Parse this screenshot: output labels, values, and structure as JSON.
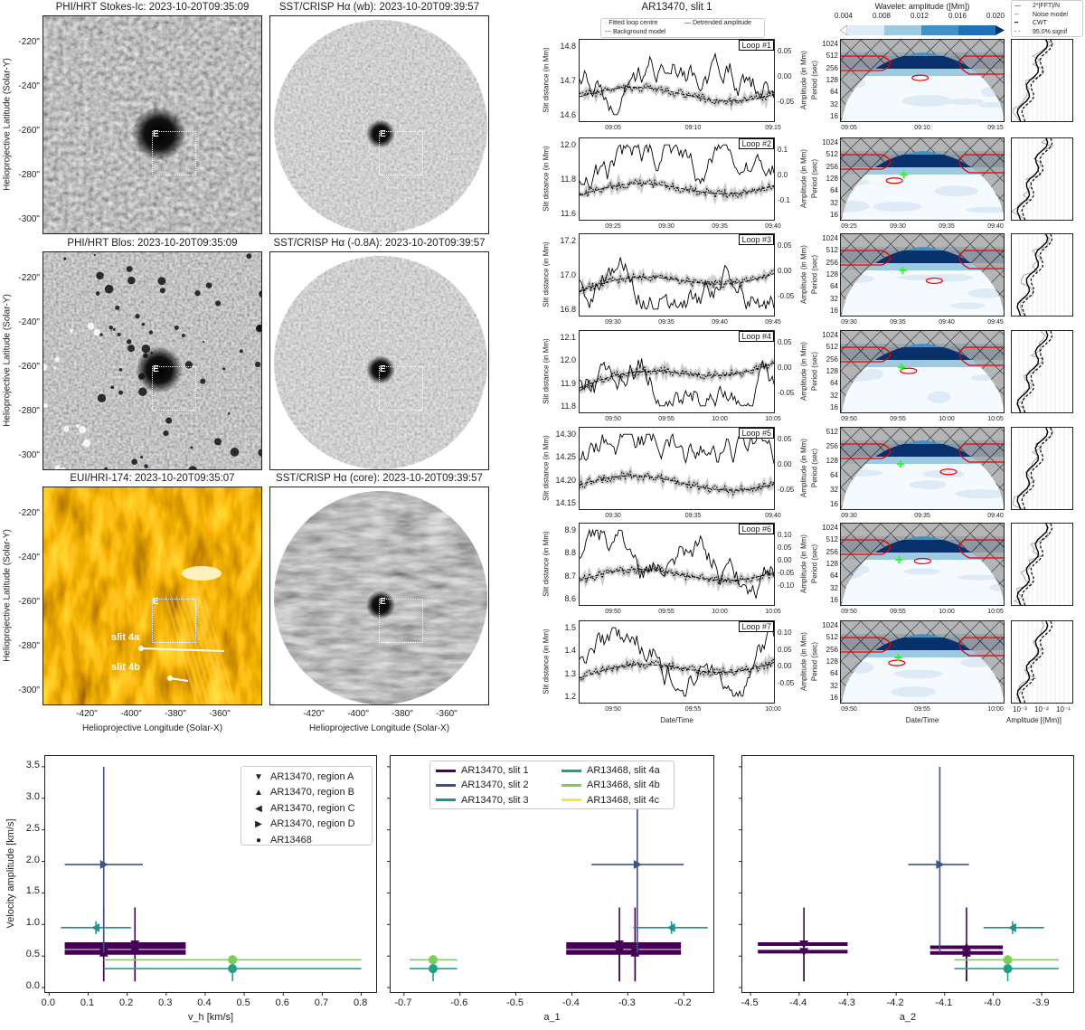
{
  "images": {
    "ylabel": "Helioprojective Latitude (Solar-Y)",
    "xlabel": "Helioprojective Longitude (Solar-X)",
    "yticks": [
      "-220\"",
      "-240\"",
      "-260\"",
      "-280\"",
      "-300\""
    ],
    "xticks": [
      "-420\"",
      "-400\"",
      "-380\"",
      "-360\""
    ],
    "marker_label": "E",
    "slit_labels": [
      "slit 4a",
      "slit 4b"
    ],
    "panels": [
      {
        "title": "PHI/HRT Stokes-Ic: 2023-10-20T09:35:09",
        "kind": "continuum"
      },
      {
        "title": "SST/CRISP Hα (wb): 2023-10-20T09:39:57",
        "kind": "disk-light"
      },
      {
        "title": "PHI/HRT Blos: 2023-10-20T09:35:09",
        "kind": "magnetogram"
      },
      {
        "title": "SST/CRISP Hα (-0.8A): 2023-10-20T09:39:57",
        "kind": "disk-light"
      },
      {
        "title": "EUI/HRI-174: 2023-10-20T09:35:07",
        "kind": "euv"
      },
      {
        "title": "SST/CRISP Hα (core): 2023-10-20T09:39:57",
        "kind": "disk-dark"
      }
    ]
  },
  "timeseries": {
    "title": "AR13470, slit 1",
    "legend": [
      "Fitted loop centre",
      "Detrended amplitude",
      "Background model"
    ],
    "ylabel_left": "Slit distance (in Mm)",
    "ylabel_right": "Amplitude (in Mm)",
    "xlabel": "Date/Time",
    "loops": [
      {
        "label": "Loop #1",
        "left": [
          "14.8",
          "14.7",
          "14.6"
        ],
        "right": [
          "0.05",
          "0.00",
          "-0.05"
        ],
        "times": [
          "09:05",
          "09:10",
          "09:15"
        ],
        "periods": [
          "1024",
          "512",
          "256",
          "128",
          "64",
          "32",
          "16"
        ]
      },
      {
        "label": "Loop #2",
        "left": [
          "12.0",
          "11.8",
          "11.6"
        ],
        "right": [
          "0.1",
          "0.0",
          "-0.1"
        ],
        "times": [
          "09:25",
          "09:30",
          "09:35",
          "09:40"
        ],
        "periods": [
          "1024",
          "512",
          "256",
          "128",
          "64",
          "32",
          "16"
        ]
      },
      {
        "label": "Loop #3",
        "left": [
          "17.2",
          "17.0",
          "16.8"
        ],
        "right": [
          "0.05",
          "0.00",
          "-0.05"
        ],
        "times": [
          "09:30",
          "09:35",
          "09:40",
          "09:45"
        ],
        "periods": [
          "1024",
          "512",
          "256",
          "128",
          "64",
          "32",
          "16"
        ]
      },
      {
        "label": "Loop #4",
        "left": [
          "12.1",
          "12.0",
          "11.9",
          "11.8"
        ],
        "right": [
          "0.05",
          "0.00",
          "-0.05"
        ],
        "times": [
          "09:50",
          "09:55",
          "10:00",
          "10:05"
        ],
        "periods": [
          "1024",
          "512",
          "256",
          "128",
          "64",
          "32",
          "16"
        ]
      },
      {
        "label": "Loop #5",
        "left": [
          "14.30",
          "14.25",
          "14.20",
          "14.15"
        ],
        "right": [
          "0.05",
          "0.00",
          "-0.05"
        ],
        "times": [
          "09:30",
          "09:35",
          "09:40"
        ],
        "periods": [
          "512",
          "256",
          "128",
          "64",
          "32",
          "16"
        ]
      },
      {
        "label": "Loop #6",
        "left": [
          "8.9",
          "8.8",
          "8.7",
          "8.6"
        ],
        "right": [
          "0.10",
          "0.05",
          "0.00",
          "-0.05",
          "-0.10"
        ],
        "times": [
          "09:50",
          "09:55",
          "10:00",
          "10:05"
        ],
        "periods": [
          "1024",
          "512",
          "256",
          "128",
          "64",
          "32",
          "16"
        ]
      },
      {
        "label": "Loop #7",
        "left": [
          "1.5",
          "1.4",
          "1.3",
          "1.2"
        ],
        "right": [
          "0.10",
          "0.05",
          "0.00",
          "-0.05"
        ],
        "times": [
          "09:50",
          "09:55",
          "10:00"
        ],
        "periods": [
          "1024",
          "512",
          "256",
          "128",
          "64",
          "32",
          "16"
        ]
      }
    ]
  },
  "wavelet": {
    "colorbar_title": "Wavelet: amplitude ([Mm])",
    "colorbar_ticks": [
      "0.004",
      "0.008",
      "0.012",
      "0.016",
      "0.020"
    ],
    "colors": [
      "#deebf7",
      "#9ecae1",
      "#4292c6",
      "#2171b5",
      "#08306b"
    ],
    "ylabel": "Period (sec)",
    "xlabel": "Date/Time",
    "spectrum_legend": [
      "2*|FFT|/N",
      "Noise model",
      "CWT",
      "95.0% signif"
    ],
    "spectrum_ticks": [
      "10⁻³",
      "10⁻²",
      "10⁻¹"
    ],
    "spectrum_xlabel": "Amplitude [(Mm)]"
  },
  "chart_data": [
    {
      "type": "scatter",
      "xkey": "vh",
      "xlabel": "v_h [km/s]",
      "ylabel": "Velocity amplitude [km/s]",
      "xlim": [
        -0.01,
        0.838
      ],
      "ylim": [
        -0.07,
        3.67
      ],
      "xticks": [
        0.0,
        0.1,
        0.2,
        0.3,
        0.4,
        0.5,
        0.6,
        0.7,
        0.8
      ],
      "yticks": [
        0.0,
        0.5,
        1.0,
        1.5,
        2.0,
        2.5,
        3.0,
        3.5
      ],
      "legend": "markers",
      "legend_position": "top-right"
    },
    {
      "type": "scatter",
      "xkey": "a1",
      "xlabel": "a_1",
      "ylabel": "",
      "xlim": [
        -0.724,
        -0.147
      ],
      "ylim": [
        -0.07,
        3.67
      ],
      "xticks": [
        -0.7,
        -0.6,
        -0.5,
        -0.4,
        -0.3,
        -0.2
      ],
      "yticks": [],
      "legend": "series",
      "legend_position": "top-center"
    },
    {
      "type": "scatter",
      "xkey": "a2",
      "xlabel": "a_2",
      "ylabel": "",
      "xlim": [
        -4.517,
        -3.835
      ],
      "ylim": [
        -0.07,
        3.67
      ],
      "xticks": [
        -4.5,
        -4.4,
        -4.3,
        -4.2,
        -4.1,
        -4.0,
        -3.9
      ],
      "yticks": [],
      "legend": "none"
    }
  ],
  "markers": [
    {
      "symbol": "down",
      "name": "AR13470, region A"
    },
    {
      "symbol": "up",
      "name": "AR13470, region B"
    },
    {
      "symbol": "left",
      "name": "AR13470, region C"
    },
    {
      "symbol": "right",
      "name": "AR13470, region D"
    },
    {
      "symbol": "circle",
      "name": "AR13468"
    }
  ],
  "series": [
    {
      "name": "AR13470, slit 1",
      "color": "#440154",
      "points": [
        {
          "m": "down",
          "amp": 0.69,
          "amp_err": [
            0.1,
            1.27
          ],
          "vh": 0.22,
          "vh_err": [
            0.04,
            0.35
          ],
          "a1": -0.315,
          "a1_err": [
            -0.41,
            -0.205
          ],
          "a2": -4.39,
          "a2_err": [
            -4.485,
            -4.3
          ]
        },
        {
          "m": "up",
          "amp": 0.64,
          "amp_err": [
            0.1,
            1.27
          ],
          "vh": 0.14,
          "vh_err": [
            0.04,
            0.35
          ],
          "a1": -0.287,
          "a1_err": [
            -0.41,
            -0.205
          ],
          "a2": -4.055,
          "a2_err": [
            -4.13,
            -3.98
          ]
        },
        {
          "m": "up",
          "amp": 0.55,
          "amp_err": [
            0.1,
            0.7
          ],
          "vh": 0.14,
          "vh_err": [
            0.04,
            0.35
          ],
          "a1": -0.287,
          "a1_err": [
            -0.41,
            -0.205
          ],
          "a2": -4.055,
          "a2_err": [
            -4.13,
            -3.98
          ]
        },
        {
          "m": "down",
          "amp": 0.57,
          "amp_err": [
            0.1,
            0.7
          ],
          "vh": 0.22,
          "vh_err": [
            0.04,
            0.35
          ],
          "a1": -0.315,
          "a1_err": [
            -0.41,
            -0.205
          ],
          "a2": -4.39,
          "a2_err": [
            -4.485,
            -4.3
          ]
        }
      ]
    },
    {
      "name": "AR13470, slit 2",
      "color": "#3b528b",
      "points": [
        {
          "m": "right",
          "amp": 1.95,
          "amp_err": [
            0.55,
            3.5
          ],
          "vh": 0.14,
          "vh_err": [
            0.04,
            0.24
          ],
          "a1": -0.283,
          "a1_err": [
            -0.365,
            -0.2
          ],
          "a2": -4.11,
          "a2_err": [
            -4.175,
            -4.05
          ]
        }
      ]
    },
    {
      "name": "AR13470, slit 3",
      "color": "#21918c",
      "points": [
        {
          "m": "left",
          "amp": 0.95,
          "amp_err": [
            0.85,
            1.05
          ],
          "vh": 0.12,
          "vh_err": [
            0.03,
            0.21
          ],
          "a1": -0.222,
          "a1_err": [
            -0.29,
            -0.157
          ],
          "a2": -3.96,
          "a2_err": [
            -4.02,
            -3.895
          ]
        }
      ]
    },
    {
      "name": "AR13468, slit 4a",
      "color": "#1fa187",
      "points": [
        {
          "m": "circle",
          "amp": 0.3,
          "amp_err": [
            0.1,
            0.5
          ],
          "vh": 0.47,
          "vh_err": [
            0.14,
            0.8
          ],
          "a1": -0.648,
          "a1_err": [
            -0.69,
            -0.605
          ],
          "a2": -3.97,
          "a2_err": [
            -4.08,
            -3.865
          ]
        }
      ]
    },
    {
      "name": "AR13468, slit 4b",
      "color": "#7ad151",
      "points": [
        {
          "m": "circle",
          "amp": 0.44,
          "amp_err": [
            0.38,
            0.52
          ],
          "vh": 0.47,
          "vh_err": [
            0.14,
            0.8
          ],
          "a1": -0.648,
          "a1_err": [
            -0.69,
            -0.605
          ],
          "a2": -3.97,
          "a2_err": [
            -4.08,
            -3.865
          ]
        }
      ]
    },
    {
      "name": "AR13468, slit 4c",
      "color": "#fde725",
      "points": []
    }
  ]
}
